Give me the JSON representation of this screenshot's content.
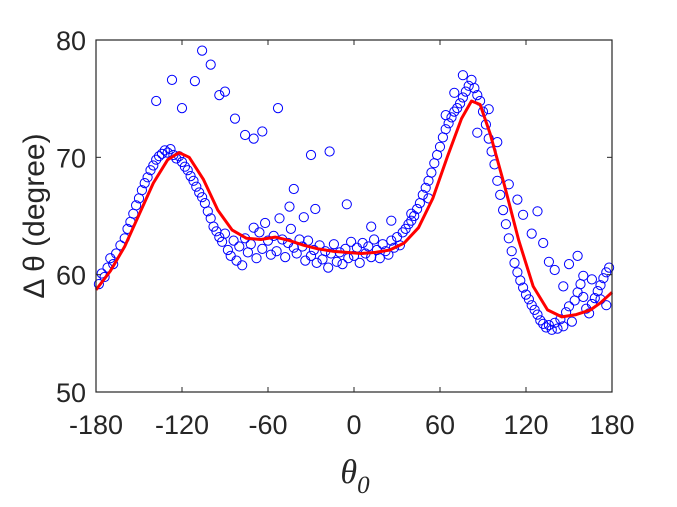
{
  "chart_data": {
    "type": "scatter",
    "xlabel": "θ0",
    "ylabel": "Δ θ (degree)",
    "xlim": [
      -180,
      180
    ],
    "ylim": [
      50,
      80
    ],
    "xticks": [
      "-180",
      "-120",
      "-60",
      "0",
      "60",
      "120",
      "180"
    ],
    "yticks": [
      "50",
      "60",
      "70",
      "80"
    ],
    "grid": false,
    "colors": {
      "points": "#0000ff",
      "fit": "#ff0000",
      "axes": "#262626"
    },
    "series": [
      {
        "kind": "scatter",
        "marker": "open-circle",
        "points": [
          [
            -178,
            59.2
          ],
          [
            -176,
            60.1
          ],
          [
            -174,
            59.8
          ],
          [
            -172,
            60.6
          ],
          [
            -170,
            61.4
          ],
          [
            -168,
            60.9
          ],
          [
            -166,
            61.8
          ],
          [
            -163,
            62.5
          ],
          [
            -160,
            63.1
          ],
          [
            -158,
            63.9
          ],
          [
            -156,
            64.5
          ],
          [
            -154,
            65.2
          ],
          [
            -152,
            65.9
          ],
          [
            -150,
            66.5
          ],
          [
            -148,
            67.2
          ],
          [
            -146,
            67.8
          ],
          [
            -144,
            68.3
          ],
          [
            -142,
            68.9
          ],
          [
            -140,
            69.3
          ],
          [
            -138,
            69.8
          ],
          [
            -136,
            70.1
          ],
          [
            -134,
            70.3
          ],
          [
            -132,
            70.6
          ],
          [
            -130,
            70.4
          ],
          [
            -128,
            70.7
          ],
          [
            -126,
            70.2
          ],
          [
            -124,
            69.9
          ],
          [
            -122,
            70.1
          ],
          [
            -120,
            69.6
          ],
          [
            -118,
            69.2
          ],
          [
            -116,
            68.9
          ],
          [
            -114,
            68.4
          ],
          [
            -112,
            68.0
          ],
          [
            -110,
            67.5
          ],
          [
            -108,
            67.0
          ],
          [
            -106,
            66.6
          ],
          [
            -104,
            66.1
          ],
          [
            -102,
            65.4
          ],
          [
            -100,
            64.8
          ],
          [
            -98,
            64.1
          ],
          [
            -96,
            63.7
          ],
          [
            -94,
            63.2
          ],
          [
            -92,
            62.8
          ],
          [
            -90,
            63.5
          ],
          [
            -88,
            62.1
          ],
          [
            -86,
            61.6
          ],
          [
            -84,
            62.9
          ],
          [
            -82,
            61.2
          ],
          [
            -80,
            62.4
          ],
          [
            -78,
            60.8
          ],
          [
            -76,
            63.1
          ],
          [
            -74,
            61.9
          ],
          [
            -72,
            62.6
          ],
          [
            -70,
            64.0
          ],
          [
            -68,
            61.4
          ],
          [
            -66,
            63.6
          ],
          [
            -64,
            62.2
          ],
          [
            -62,
            64.4
          ],
          [
            -60,
            62.9
          ],
          [
            -58,
            61.7
          ],
          [
            -56,
            63.3
          ],
          [
            -54,
            62.0
          ],
          [
            -52,
            64.8
          ],
          [
            -50,
            63.0
          ],
          [
            -48,
            61.5
          ],
          [
            -46,
            62.7
          ],
          [
            -44,
            63.9
          ],
          [
            -42,
            62.3
          ],
          [
            -40,
            61.8
          ],
          [
            -38,
            63.0
          ],
          [
            -36,
            62.4
          ],
          [
            -34,
            61.2
          ],
          [
            -32,
            62.9
          ],
          [
            -30,
            61.6
          ],
          [
            -28,
            62.1
          ],
          [
            -26,
            61.0
          ],
          [
            -24,
            62.5
          ],
          [
            -22,
            61.3
          ],
          [
            -20,
            62.0
          ],
          [
            -18,
            60.6
          ],
          [
            -16,
            61.8
          ],
          [
            -14,
            62.6
          ],
          [
            -12,
            61.1
          ],
          [
            -10,
            61.9
          ],
          [
            -8,
            60.9
          ],
          [
            -6,
            62.2
          ],
          [
            -4,
            61.4
          ],
          [
            -2,
            62.8
          ],
          [
            0,
            61.6
          ],
          [
            2,
            62.3
          ],
          [
            4,
            61.0
          ],
          [
            6,
            62.7
          ],
          [
            8,
            61.8
          ],
          [
            10,
            62.4
          ],
          [
            12,
            61.5
          ],
          [
            14,
            63.0
          ],
          [
            16,
            62.1
          ],
          [
            18,
            61.4
          ],
          [
            20,
            62.6
          ],
          [
            22,
            62.0
          ],
          [
            24,
            61.7
          ],
          [
            26,
            62.9
          ],
          [
            28,
            62.3
          ],
          [
            30,
            63.2
          ],
          [
            32,
            62.5
          ],
          [
            34,
            63.6
          ],
          [
            36,
            63.9
          ],
          [
            38,
            64.3
          ],
          [
            40,
            64.6
          ],
          [
            42,
            65.0
          ],
          [
            44,
            65.6
          ],
          [
            46,
            66.1
          ],
          [
            48,
            66.8
          ],
          [
            50,
            67.4
          ],
          [
            52,
            68.0
          ],
          [
            54,
            68.7
          ],
          [
            56,
            69.5
          ],
          [
            58,
            70.2
          ],
          [
            60,
            70.9
          ],
          [
            62,
            71.7
          ],
          [
            64,
            72.4
          ],
          [
            66,
            72.9
          ],
          [
            68,
            73.4
          ],
          [
            70,
            73.9
          ],
          [
            72,
            74.2
          ],
          [
            74,
            74.6
          ],
          [
            76,
            75.1
          ],
          [
            78,
            75.6
          ],
          [
            80,
            76.1
          ],
          [
            82,
            76.6
          ],
          [
            84,
            75.9
          ],
          [
            86,
            75.3
          ],
          [
            88,
            74.8
          ],
          [
            90,
            73.9
          ],
          [
            92,
            72.8
          ],
          [
            94,
            71.6
          ],
          [
            96,
            70.5
          ],
          [
            98,
            69.4
          ],
          [
            100,
            68.0
          ],
          [
            102,
            66.8
          ],
          [
            104,
            65.5
          ],
          [
            106,
            64.3
          ],
          [
            108,
            63.1
          ],
          [
            110,
            62.0
          ],
          [
            112,
            61.0
          ],
          [
            114,
            60.2
          ],
          [
            116,
            59.5
          ],
          [
            118,
            58.9
          ],
          [
            120,
            58.3
          ],
          [
            122,
            57.9
          ],
          [
            124,
            57.4
          ],
          [
            126,
            57.0
          ],
          [
            128,
            56.6
          ],
          [
            130,
            56.1
          ],
          [
            132,
            55.8
          ],
          [
            134,
            55.5
          ],
          [
            136,
            55.7
          ],
          [
            138,
            55.3
          ],
          [
            140,
            55.9
          ],
          [
            142,
            55.4
          ],
          [
            144,
            56.2
          ],
          [
            146,
            55.6
          ],
          [
            148,
            56.8
          ],
          [
            150,
            57.3
          ],
          [
            152,
            56.0
          ],
          [
            154,
            57.8
          ],
          [
            156,
            58.5
          ],
          [
            158,
            59.2
          ],
          [
            160,
            59.9
          ],
          [
            162,
            57.1
          ],
          [
            164,
            56.7
          ],
          [
            166,
            57.5
          ],
          [
            168,
            58.0
          ],
          [
            170,
            58.6
          ],
          [
            172,
            59.1
          ],
          [
            174,
            59.7
          ],
          [
            176,
            60.2
          ],
          [
            178,
            60.6
          ],
          [
            -138,
            74.8
          ],
          [
            -127,
            76.6
          ],
          [
            -120,
            74.2
          ],
          [
            -111,
            76.5
          ],
          [
            -106,
            79.1
          ],
          [
            -100,
            77.9
          ],
          [
            -94,
            75.3
          ],
          [
            -90,
            75.6
          ],
          [
            -83,
            73.3
          ],
          [
            -76,
            71.9
          ],
          [
            -70,
            71.6
          ],
          [
            -64,
            72.2
          ],
          [
            -53,
            74.2
          ],
          [
            -42,
            67.3
          ],
          [
            -30,
            70.2
          ],
          [
            -17,
            70.5
          ],
          [
            -5,
            66.0
          ],
          [
            -45,
            65.8
          ],
          [
            -35,
            64.9
          ],
          [
            -27,
            65.6
          ],
          [
            12,
            64.1
          ],
          [
            26,
            64.6
          ],
          [
            40,
            65.2
          ],
          [
            52,
            66.5
          ],
          [
            64,
            73.6
          ],
          [
            70,
            75.5
          ],
          [
            76,
            77.0
          ],
          [
            86,
            72.1
          ],
          [
            94,
            74.1
          ],
          [
            100,
            71.3
          ],
          [
            108,
            67.7
          ],
          [
            114,
            66.4
          ],
          [
            118,
            65.1
          ],
          [
            124,
            63.5
          ],
          [
            128,
            65.4
          ],
          [
            132,
            62.7
          ],
          [
            136,
            61.1
          ],
          [
            140,
            60.4
          ],
          [
            146,
            59.0
          ],
          [
            150,
            60.9
          ],
          [
            156,
            61.6
          ],
          [
            160,
            58.1
          ],
          [
            166,
            59.6
          ],
          [
            172,
            57.9
          ],
          [
            176,
            57.4
          ]
        ]
      },
      {
        "kind": "line",
        "points": [
          [
            -180,
            58.7
          ],
          [
            -170,
            60.3
          ],
          [
            -160,
            62.4
          ],
          [
            -150,
            65.1
          ],
          [
            -140,
            67.8
          ],
          [
            -130,
            69.8
          ],
          [
            -122,
            70.4
          ],
          [
            -115,
            70.0
          ],
          [
            -105,
            68.1
          ],
          [
            -95,
            65.5
          ],
          [
            -85,
            63.8
          ],
          [
            -75,
            63.1
          ],
          [
            -65,
            63.0
          ],
          [
            -55,
            63.2
          ],
          [
            -45,
            62.9
          ],
          [
            -35,
            62.5
          ],
          [
            -25,
            62.2
          ],
          [
            -15,
            62.0
          ],
          [
            -5,
            61.9
          ],
          [
            5,
            61.8
          ],
          [
            15,
            61.9
          ],
          [
            25,
            62.1
          ],
          [
            35,
            62.7
          ],
          [
            45,
            64.0
          ],
          [
            55,
            66.5
          ],
          [
            65,
            70.0
          ],
          [
            75,
            73.3
          ],
          [
            82,
            74.8
          ],
          [
            88,
            74.5
          ],
          [
            95,
            72.0
          ],
          [
            105,
            67.6
          ],
          [
            115,
            62.9
          ],
          [
            125,
            59.0
          ],
          [
            135,
            57.0
          ],
          [
            145,
            56.4
          ],
          [
            155,
            56.6
          ],
          [
            165,
            57.0
          ],
          [
            172,
            57.6
          ],
          [
            180,
            58.5
          ]
        ]
      }
    ]
  }
}
